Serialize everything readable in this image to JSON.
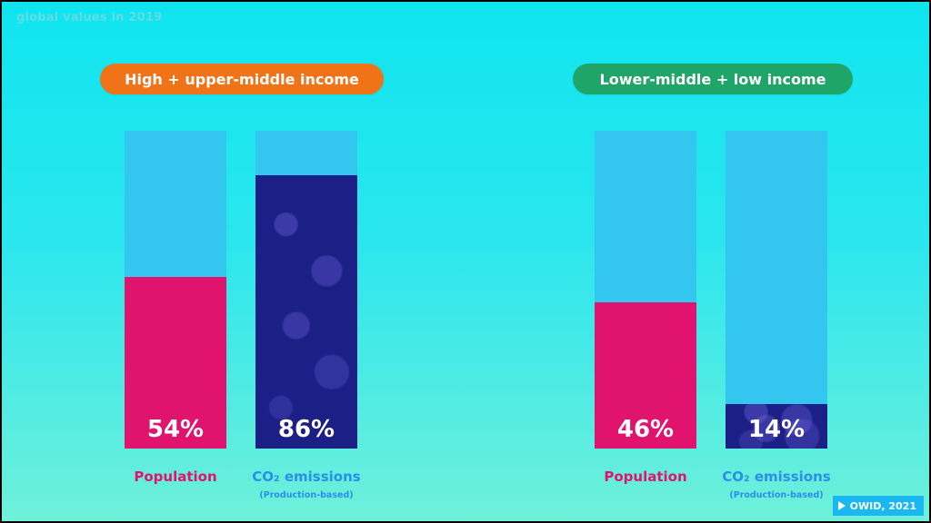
{
  "caption": "global values in 2019",
  "colors": {
    "orange": "#f07318",
    "green": "#1fa567",
    "population": "#e0146f",
    "co2": "#1c1f86",
    "track": "#33c6ef"
  },
  "chart_data": [
    {
      "type": "bar",
      "title": "High + upper-middle income",
      "categories": [
        "Population",
        "CO₂ emissions"
      ],
      "sublabels": [
        "",
        "(Production-based)"
      ],
      "values": [
        54,
        86
      ],
      "value_labels": [
        "54%",
        "86%"
      ],
      "ylim": [
        0,
        100
      ]
    },
    {
      "type": "bar",
      "title": "Lower-middle + low income",
      "categories": [
        "Population",
        "CO₂ emissions"
      ],
      "sublabels": [
        "",
        "(Production-based)"
      ],
      "values": [
        46,
        14
      ],
      "value_labels": [
        "46%",
        "14%"
      ],
      "ylim": [
        0,
        100
      ]
    }
  ],
  "badge": "OWID, 2021",
  "badge_icon": "play-icon"
}
